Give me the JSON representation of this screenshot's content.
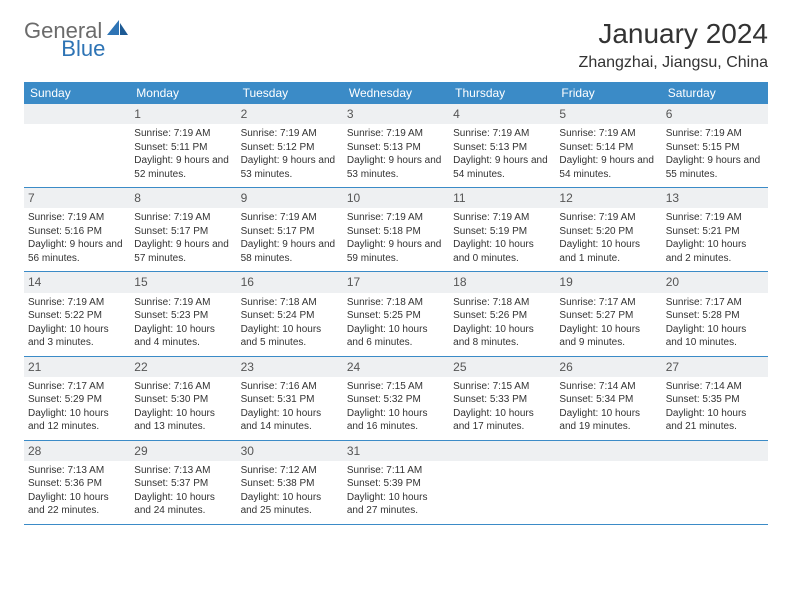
{
  "logo": {
    "part1": "General",
    "part2": "Blue"
  },
  "title": "January 2024",
  "location": "Zhangzhai, Jiangsu, China",
  "colors": {
    "header_bg": "#3b8bc7",
    "header_text": "#ffffff",
    "daynum_bg": "#eef0f2",
    "border": "#3b8bc7",
    "logo_gray": "#6b6b6b",
    "logo_blue": "#2e74b5",
    "text": "#333333"
  },
  "weekdays": [
    "Sunday",
    "Monday",
    "Tuesday",
    "Wednesday",
    "Thursday",
    "Friday",
    "Saturday"
  ],
  "layout": {
    "cols": 7,
    "rows": 5,
    "first_day_col": 1
  },
  "days": [
    {
      "n": 1,
      "sunrise": "7:19 AM",
      "sunset": "5:11 PM",
      "daylight": "9 hours and 52 minutes."
    },
    {
      "n": 2,
      "sunrise": "7:19 AM",
      "sunset": "5:12 PM",
      "daylight": "9 hours and 53 minutes."
    },
    {
      "n": 3,
      "sunrise": "7:19 AM",
      "sunset": "5:13 PM",
      "daylight": "9 hours and 53 minutes."
    },
    {
      "n": 4,
      "sunrise": "7:19 AM",
      "sunset": "5:13 PM",
      "daylight": "9 hours and 54 minutes."
    },
    {
      "n": 5,
      "sunrise": "7:19 AM",
      "sunset": "5:14 PM",
      "daylight": "9 hours and 54 minutes."
    },
    {
      "n": 6,
      "sunrise": "7:19 AM",
      "sunset": "5:15 PM",
      "daylight": "9 hours and 55 minutes."
    },
    {
      "n": 7,
      "sunrise": "7:19 AM",
      "sunset": "5:16 PM",
      "daylight": "9 hours and 56 minutes."
    },
    {
      "n": 8,
      "sunrise": "7:19 AM",
      "sunset": "5:17 PM",
      "daylight": "9 hours and 57 minutes."
    },
    {
      "n": 9,
      "sunrise": "7:19 AM",
      "sunset": "5:17 PM",
      "daylight": "9 hours and 58 minutes."
    },
    {
      "n": 10,
      "sunrise": "7:19 AM",
      "sunset": "5:18 PM",
      "daylight": "9 hours and 59 minutes."
    },
    {
      "n": 11,
      "sunrise": "7:19 AM",
      "sunset": "5:19 PM",
      "daylight": "10 hours and 0 minutes."
    },
    {
      "n": 12,
      "sunrise": "7:19 AM",
      "sunset": "5:20 PM",
      "daylight": "10 hours and 1 minute."
    },
    {
      "n": 13,
      "sunrise": "7:19 AM",
      "sunset": "5:21 PM",
      "daylight": "10 hours and 2 minutes."
    },
    {
      "n": 14,
      "sunrise": "7:19 AM",
      "sunset": "5:22 PM",
      "daylight": "10 hours and 3 minutes."
    },
    {
      "n": 15,
      "sunrise": "7:19 AM",
      "sunset": "5:23 PM",
      "daylight": "10 hours and 4 minutes."
    },
    {
      "n": 16,
      "sunrise": "7:18 AM",
      "sunset": "5:24 PM",
      "daylight": "10 hours and 5 minutes."
    },
    {
      "n": 17,
      "sunrise": "7:18 AM",
      "sunset": "5:25 PM",
      "daylight": "10 hours and 6 minutes."
    },
    {
      "n": 18,
      "sunrise": "7:18 AM",
      "sunset": "5:26 PM",
      "daylight": "10 hours and 8 minutes."
    },
    {
      "n": 19,
      "sunrise": "7:17 AM",
      "sunset": "5:27 PM",
      "daylight": "10 hours and 9 minutes."
    },
    {
      "n": 20,
      "sunrise": "7:17 AM",
      "sunset": "5:28 PM",
      "daylight": "10 hours and 10 minutes."
    },
    {
      "n": 21,
      "sunrise": "7:17 AM",
      "sunset": "5:29 PM",
      "daylight": "10 hours and 12 minutes."
    },
    {
      "n": 22,
      "sunrise": "7:16 AM",
      "sunset": "5:30 PM",
      "daylight": "10 hours and 13 minutes."
    },
    {
      "n": 23,
      "sunrise": "7:16 AM",
      "sunset": "5:31 PM",
      "daylight": "10 hours and 14 minutes."
    },
    {
      "n": 24,
      "sunrise": "7:15 AM",
      "sunset": "5:32 PM",
      "daylight": "10 hours and 16 minutes."
    },
    {
      "n": 25,
      "sunrise": "7:15 AM",
      "sunset": "5:33 PM",
      "daylight": "10 hours and 17 minutes."
    },
    {
      "n": 26,
      "sunrise": "7:14 AM",
      "sunset": "5:34 PM",
      "daylight": "10 hours and 19 minutes."
    },
    {
      "n": 27,
      "sunrise": "7:14 AM",
      "sunset": "5:35 PM",
      "daylight": "10 hours and 21 minutes."
    },
    {
      "n": 28,
      "sunrise": "7:13 AM",
      "sunset": "5:36 PM",
      "daylight": "10 hours and 22 minutes."
    },
    {
      "n": 29,
      "sunrise": "7:13 AM",
      "sunset": "5:37 PM",
      "daylight": "10 hours and 24 minutes."
    },
    {
      "n": 30,
      "sunrise": "7:12 AM",
      "sunset": "5:38 PM",
      "daylight": "10 hours and 25 minutes."
    },
    {
      "n": 31,
      "sunrise": "7:11 AM",
      "sunset": "5:39 PM",
      "daylight": "10 hours and 27 minutes."
    }
  ]
}
